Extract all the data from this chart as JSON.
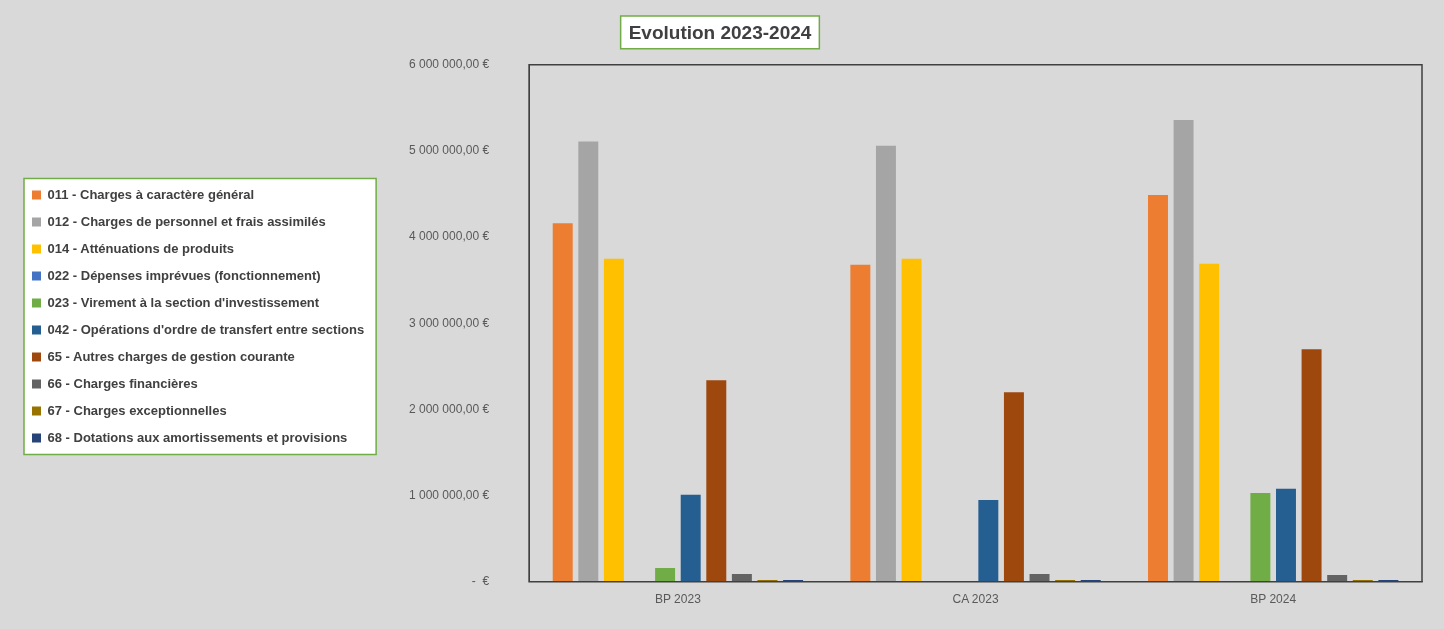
{
  "chart_data": {
    "type": "bar",
    "title": "Evolution 2023-2024",
    "categories": [
      "BP 2023",
      "CA 2023",
      "BP 2024"
    ],
    "series": [
      {
        "name": "011 - Charges à caractère général",
        "color": "#ed7d31",
        "values": [
          4160000,
          3680000,
          4490000
        ]
      },
      {
        "name": "012 - Charges de personnel et frais assimilés",
        "color": "#a5a5a5",
        "values": [
          5110000,
          5060000,
          5360000
        ]
      },
      {
        "name": "014 - Atténuations de produits",
        "color": "#ffc000",
        "values": [
          3750000,
          3750000,
          3690000
        ]
      },
      {
        "name": "022 - Dépenses imprévues (fonctionnement)",
        "color": "#4472c4",
        "values": [
          0,
          0,
          0
        ]
      },
      {
        "name": "023 - Virement à la section d'investissement",
        "color": "#70ad47",
        "values": [
          160000,
          0,
          1030000
        ]
      },
      {
        "name": "042 - Opérations d'ordre de transfert entre sections",
        "color": "#255e91",
        "values": [
          1010000,
          950000,
          1080000
        ]
      },
      {
        "name": "65 - Autres charges de gestion courante",
        "color": "#9e480e",
        "values": [
          2340000,
          2200000,
          2700000
        ]
      },
      {
        "name": "66 - Charges financières",
        "color": "#636363",
        "values": [
          90000,
          90000,
          80000
        ]
      },
      {
        "name": "67 - Charges exceptionnelles",
        "color": "#997300",
        "values": [
          20000,
          20000,
          20000
        ]
      },
      {
        "name": "68 - Dotations aux amortissements et provisions",
        "color": "#264478",
        "values": [
          20000,
          20000,
          20000
        ]
      }
    ],
    "ylim": [
      0,
      6000000
    ],
    "yticks": [
      {
        "value": 0,
        "label": "-  €"
      },
      {
        "value": 1000000,
        "label": "1 000 000,00 €"
      },
      {
        "value": 2000000,
        "label": "2 000 000,00 €"
      },
      {
        "value": 3000000,
        "label": "3 000 000,00 €"
      },
      {
        "value": 4000000,
        "label": "4 000 000,00 €"
      },
      {
        "value": 5000000,
        "label": "5 000 000,00 €"
      },
      {
        "value": 6000000,
        "label": "6 000 000,00 €"
      }
    ],
    "grid": false,
    "legend": "left"
  }
}
